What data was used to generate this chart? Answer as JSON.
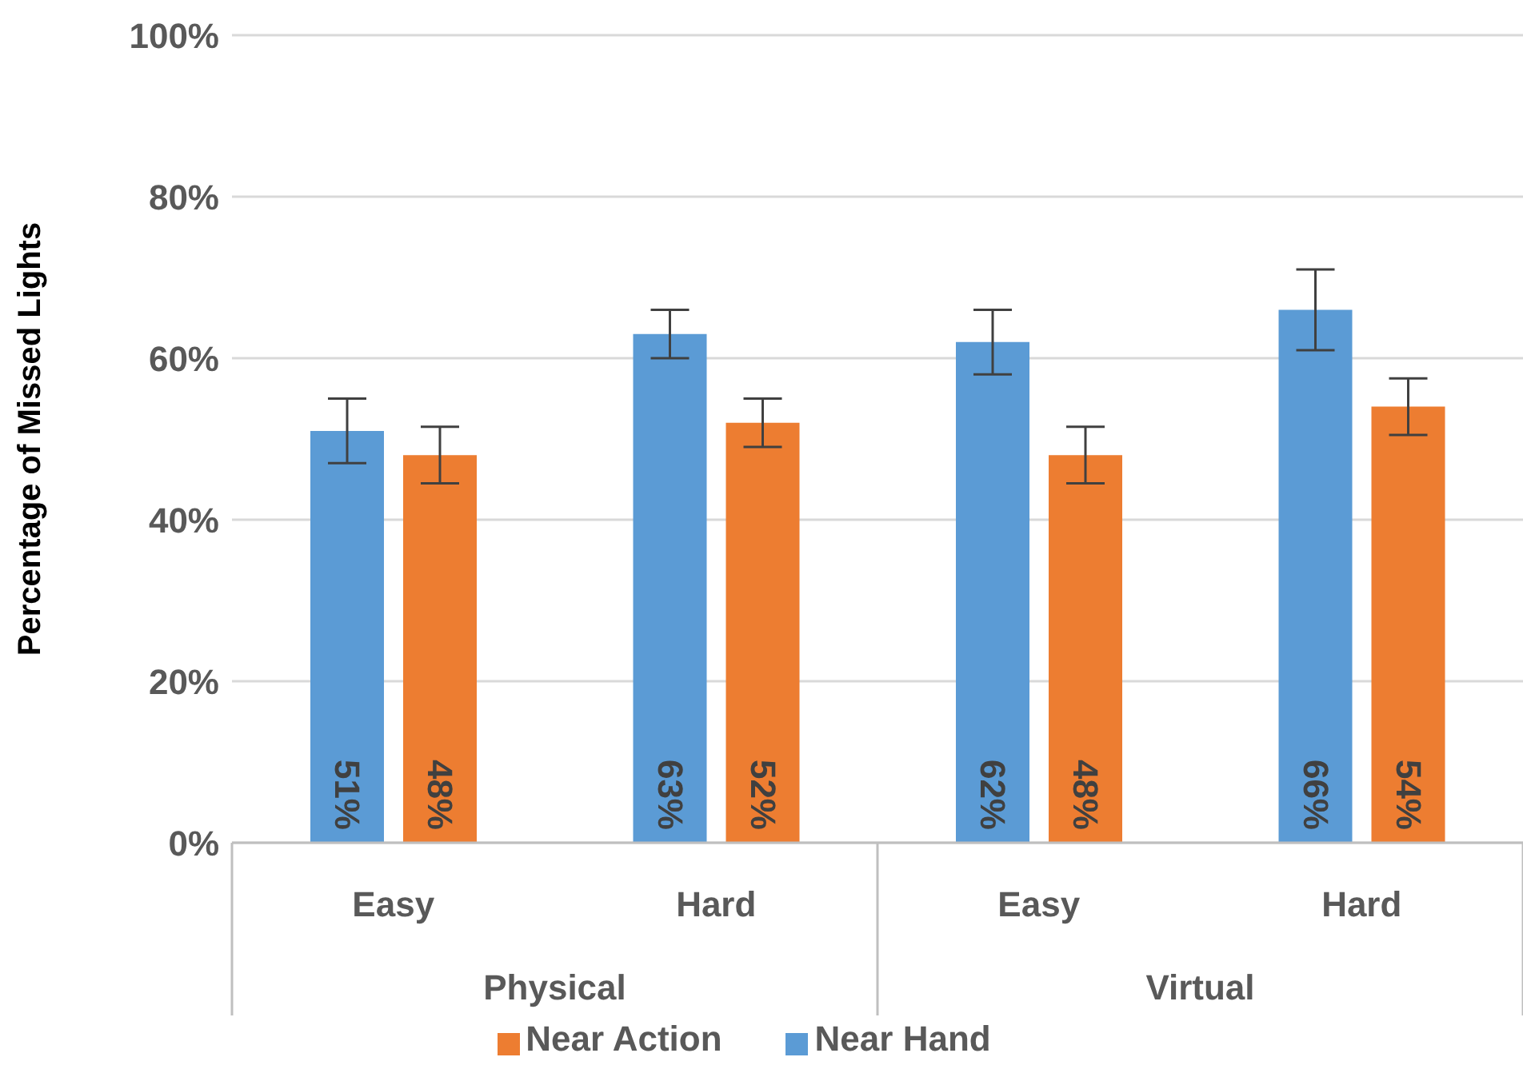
{
  "chart_data": {
    "type": "bar",
    "ylabel": "Percentage of Missed Lights",
    "categories": [
      "Easy",
      "Hard",
      "Easy",
      "Hard"
    ],
    "annotations": [
      "Physical",
      "Virtual"
    ],
    "series": [
      {
        "name": "Near Hand",
        "color": "#5b9bd5",
        "values": [
          51,
          63,
          62,
          66
        ],
        "errors": [
          4,
          3,
          4,
          5
        ],
        "value_labels": [
          "51%",
          "63%",
          "62%",
          "66%"
        ]
      },
      {
        "name": "Near Action",
        "color": "#ed7d31",
        "values": [
          48,
          52,
          48,
          54
        ],
        "errors": [
          3.5,
          3,
          3.5,
          3.5
        ],
        "value_labels": [
          "48%",
          "52%",
          "48%",
          "54%"
        ]
      }
    ],
    "ylim": [
      0,
      100
    ],
    "yticks": [
      {
        "value": 0,
        "label": "0%"
      },
      {
        "value": 20,
        "label": "20%"
      },
      {
        "value": 40,
        "label": "40%"
      },
      {
        "value": 60,
        "label": "60%"
      },
      {
        "value": 80,
        "label": "80%"
      },
      {
        "value": 100,
        "label": "100%"
      }
    ],
    "grid": "y",
    "legend": "bottom"
  }
}
